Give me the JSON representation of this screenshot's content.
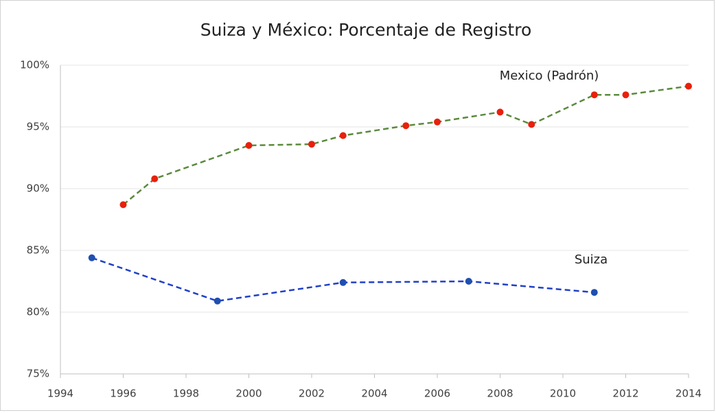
{
  "chart_data": {
    "type": "line",
    "title": "Suiza y México: Porcentaje de Registro",
    "series": [
      {
        "name": "Mexico (Padrón)",
        "color": "#5a8a3c",
        "marker_color": "#e8200c",
        "x": [
          1996,
          1997,
          2000,
          2002,
          2003,
          2005,
          2006,
          2008,
          2009,
          2011,
          2012,
          2014
        ],
        "values": [
          88.7,
          90.8,
          93.5,
          93.6,
          94.3,
          95.1,
          95.4,
          96.2,
          95.2,
          97.6,
          97.6,
          98.3
        ]
      },
      {
        "name": "Suiza",
        "color": "#2040c8",
        "marker_color": "#1f4fb0",
        "x": [
          1995,
          1999,
          2003,
          2007,
          2011
        ],
        "values": [
          84.4,
          80.9,
          82.4,
          82.5,
          81.6
        ]
      }
    ],
    "xlim": [
      1994,
      2014
    ],
    "xticks": [
      1994,
      1996,
      1998,
      2000,
      2002,
      2004,
      2006,
      2008,
      2010,
      2012,
      2014
    ],
    "ylim": [
      75,
      100
    ],
    "yticks": [
      {
        "value": 75,
        "label": "75%"
      },
      {
        "value": 80,
        "label": "80%"
      },
      {
        "value": 85,
        "label": "85%"
      },
      {
        "value": 90,
        "label": "90%"
      },
      {
        "value": 95,
        "label": "95%"
      },
      {
        "value": 100,
        "label": "100%"
      }
    ],
    "grid": true
  }
}
